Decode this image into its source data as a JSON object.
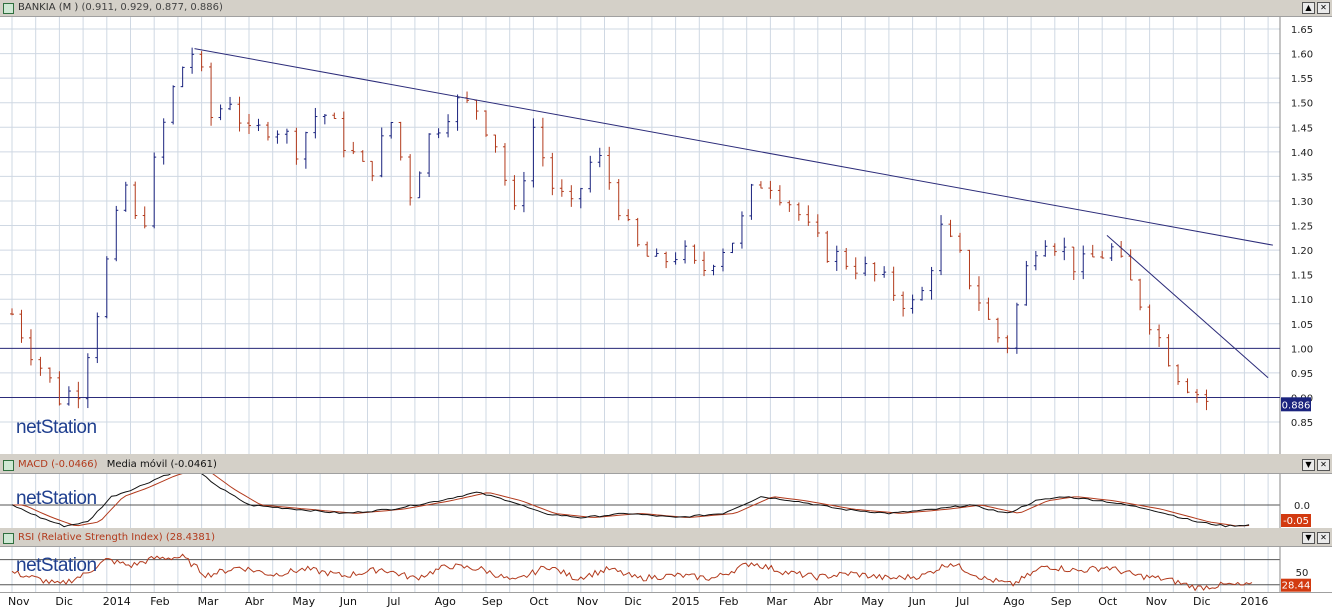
{
  "main_panel": {
    "title": "BANKIA (M )",
    "ohlc": "(0.911, 0.929, 0.877, 0.886)",
    "last_value": "0.886",
    "logo": "netStation"
  },
  "macd_panel": {
    "title": "MACD (-0.0466)",
    "ma_label": "Media móvil (-0.0461)",
    "last_value": "-0.05",
    "logo": "netStation"
  },
  "rsi_panel": {
    "title": "RSI (Relative Strength Index) (28.4381)",
    "last_value": "28.44",
    "logo": "netStation"
  },
  "window_buttons": {
    "up": "▲",
    "down": "▼",
    "close": "✕"
  },
  "colors": {
    "up": "#1a237e",
    "down": "#b23a1c",
    "trend": "#2c2c7a",
    "ma": "#b23a1c",
    "macd": "#111111",
    "grid": "#cfd8e3"
  },
  "chart_data": [
    {
      "type": "candlestick",
      "title": "BANKIA (M )",
      "x_tick_labels": [
        "Nov",
        "Dic",
        "2014",
        "Feb",
        "Mar",
        "Abr",
        "May",
        "Jun",
        "Jul",
        "Ago",
        "Sep",
        "Oct",
        "Nov",
        "Dic",
        "2015",
        "Feb",
        "Mar",
        "Abr",
        "May",
        "Jun",
        "Jul",
        "Ago",
        "Sep",
        "Oct",
        "Nov",
        "Dic",
        "2016"
      ],
      "y_ticks": [
        0.85,
        0.9,
        0.95,
        1.0,
        1.05,
        1.1,
        1.15,
        1.2,
        1.25,
        1.3,
        1.35,
        1.4,
        1.45,
        1.5,
        1.55,
        1.6,
        1.65
      ],
      "ylim": [
        0.8,
        1.68
      ],
      "x_range_months": [
        0,
        26.5
      ],
      "grid": true,
      "close_path_months": [
        [
          0,
          1.07
        ],
        [
          0.5,
          0.98
        ],
        [
          1,
          0.9
        ],
        [
          1.4,
          0.92
        ],
        [
          1.8,
          1.08
        ],
        [
          2.1,
          1.22
        ],
        [
          2.4,
          1.33
        ],
        [
          2.7,
          1.22
        ],
        [
          3.1,
          1.42
        ],
        [
          3.5,
          1.56
        ],
        [
          3.85,
          1.61
        ],
        [
          4.2,
          1.47
        ],
        [
          4.6,
          1.51
        ],
        [
          5.0,
          1.43
        ],
        [
          5.5,
          1.46
        ],
        [
          6.0,
          1.41
        ],
        [
          6.5,
          1.49
        ],
        [
          7.0,
          1.42
        ],
        [
          7.5,
          1.35
        ],
        [
          8.0,
          1.46
        ],
        [
          8.4,
          1.32
        ],
        [
          8.8,
          1.43
        ],
        [
          9.3,
          1.5
        ],
        [
          9.8,
          1.49
        ],
        [
          10.2,
          1.42
        ],
        [
          10.6,
          1.27
        ],
        [
          11.0,
          1.45
        ],
        [
          11.4,
          1.33
        ],
        [
          11.8,
          1.28
        ],
        [
          12.3,
          1.4
        ],
        [
          12.7,
          1.32
        ],
        [
          13.1,
          1.21
        ],
        [
          13.6,
          1.17
        ],
        [
          14.1,
          1.2
        ],
        [
          14.5,
          1.15
        ],
        [
          14.9,
          1.2
        ],
        [
          15.3,
          1.23
        ],
        [
          15.7,
          1.34
        ],
        [
          16.0,
          1.34
        ],
        [
          16.5,
          1.29
        ],
        [
          16.9,
          1.22
        ],
        [
          17.3,
          1.19
        ],
        [
          17.8,
          1.17
        ],
        [
          18.3,
          1.14
        ],
        [
          18.8,
          1.1
        ],
        [
          19.1,
          1.08
        ],
        [
          19.6,
          1.24
        ],
        [
          20.0,
          1.18
        ],
        [
          20.4,
          1.1
        ],
        [
          20.7,
          1.03
        ],
        [
          21.0,
          1.01
        ],
        [
          21.4,
          1.16
        ],
        [
          21.7,
          1.24
        ],
        [
          22.1,
          1.21
        ],
        [
          22.5,
          1.16
        ],
        [
          22.9,
          1.19
        ],
        [
          23.2,
          1.2
        ],
        [
          23.6,
          1.13
        ],
        [
          23.9,
          1.08
        ],
        [
          24.2,
          1.02
        ],
        [
          24.6,
          0.95
        ],
        [
          25.0,
          0.91
        ],
        [
          25.3,
          0.886
        ]
      ],
      "trendlines": [
        {
          "from": [
            3.85,
            1.61
          ],
          "to": [
            26.6,
            1.21
          ]
        },
        {
          "from": [
            23.1,
            1.23
          ],
          "to": [
            26.5,
            0.94
          ]
        }
      ],
      "horizontal_lines": [
        1.0,
        0.9
      ],
      "last_value": 0.886
    },
    {
      "type": "line",
      "title": "MACD (-0.0466)",
      "series": [
        {
          "name": "MACD (-0.0466)"
        },
        {
          "name": "Media móvil (-0.0461)"
        }
      ],
      "y_ticks": [
        0.0,
        -0.05
      ],
      "macd_path_months": [
        [
          0,
          0.0
        ],
        [
          0.6,
          -0.03
        ],
        [
          1.1,
          -0.05
        ],
        [
          1.6,
          -0.04
        ],
        [
          2.1,
          0.02
        ],
        [
          2.6,
          0.04
        ],
        [
          3.2,
          0.07
        ],
        [
          3.8,
          0.09
        ],
        [
          4.4,
          0.04
        ],
        [
          5.0,
          0.0
        ],
        [
          6.0,
          -0.01
        ],
        [
          7.0,
          -0.02
        ],
        [
          8.0,
          -0.01
        ],
        [
          9.0,
          0.01
        ],
        [
          9.8,
          0.03
        ],
        [
          10.5,
          0.01
        ],
        [
          11.2,
          -0.02
        ],
        [
          12.0,
          -0.03
        ],
        [
          13.0,
          -0.02
        ],
        [
          14.0,
          -0.03
        ],
        [
          15.0,
          -0.02
        ],
        [
          15.8,
          0.02
        ],
        [
          16.5,
          0.01
        ],
        [
          17.5,
          -0.01
        ],
        [
          18.5,
          -0.02
        ],
        [
          19.5,
          -0.01
        ],
        [
          20.2,
          0.0
        ],
        [
          21.0,
          -0.02
        ],
        [
          21.6,
          0.01
        ],
        [
          22.2,
          0.02
        ],
        [
          23.0,
          0.01
        ],
        [
          24.0,
          -0.01
        ],
        [
          25.0,
          -0.04
        ],
        [
          25.6,
          -0.05
        ],
        [
          26.2,
          -0.047
        ]
      ],
      "last_value": -0.05
    },
    {
      "type": "line",
      "title": "RSI (Relative Strength Index) (28.4381)",
      "y_ticks": [
        50
      ],
      "reference_lines": [
        70,
        30
      ],
      "rsi_path_months": [
        [
          0,
          50
        ],
        [
          0.5,
          40
        ],
        [
          1,
          30
        ],
        [
          1.5,
          45
        ],
        [
          2,
          70
        ],
        [
          2.5,
          60
        ],
        [
          3,
          72
        ],
        [
          3.6,
          74
        ],
        [
          4.1,
          45
        ],
        [
          4.8,
          58
        ],
        [
          5.5,
          46
        ],
        [
          6.2,
          55
        ],
        [
          7,
          44
        ],
        [
          7.8,
          55
        ],
        [
          8.5,
          40
        ],
        [
          9.2,
          60
        ],
        [
          9.9,
          55
        ],
        [
          10.6,
          35
        ],
        [
          11.3,
          60
        ],
        [
          11.9,
          40
        ],
        [
          12.6,
          55
        ],
        [
          13.2,
          40
        ],
        [
          14,
          45
        ],
        [
          14.8,
          40
        ],
        [
          15.6,
          65
        ],
        [
          16.3,
          50
        ],
        [
          17,
          42
        ],
        [
          17.7,
          48
        ],
        [
          18.5,
          40
        ],
        [
          19.2,
          44
        ],
        [
          19.8,
          65
        ],
        [
          20.5,
          40
        ],
        [
          21.1,
          30
        ],
        [
          21.8,
          60
        ],
        [
          22.5,
          52
        ],
        [
          23.1,
          58
        ],
        [
          23.7,
          45
        ],
        [
          24.4,
          38
        ],
        [
          25,
          25
        ],
        [
          25.6,
          30
        ],
        [
          26.2,
          28.44
        ]
      ],
      "last_value": 28.44
    }
  ]
}
